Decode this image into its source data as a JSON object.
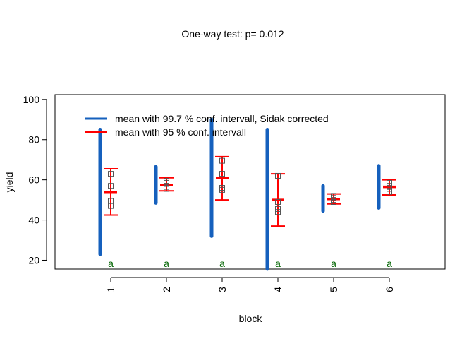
{
  "chart_data": {
    "type": "scatter",
    "title": "One-way test:  p= 0.012",
    "xlabel": "block",
    "ylabel": "yield",
    "categories": [
      "1",
      "2",
      "3",
      "4",
      "5",
      "6"
    ],
    "xlim": [
      0,
      7
    ],
    "ylim": [
      15.6,
      102.4
    ],
    "yticks": [
      20,
      40,
      60,
      80,
      100
    ],
    "legend": {
      "position": "top-left",
      "entries": [
        {
          "label": "mean with 99.7 % conf. intervall, Sidak corrected",
          "color": "#1560BD"
        },
        {
          "label": "mean with 95 % conf. intervall",
          "color": "#FF0000"
        }
      ]
    },
    "group_letters": [
      "a",
      "a",
      "a",
      "a",
      "a",
      "a"
    ],
    "colors": {
      "sidak": "#1560BD",
      "ci95": "#FF0000",
      "points": "#555555",
      "letters": "#006400"
    },
    "groups": [
      {
        "block": "1",
        "mean": 54.0,
        "ci95": [
          42.5,
          65.5
        ],
        "ci_sidak": [
          23.0,
          85.0
        ],
        "points": [
          63.0,
          57.0,
          49.5,
          47.0
        ]
      },
      {
        "block": "2",
        "mean": 57.5,
        "ci95": [
          54.5,
          61.0
        ],
        "ci_sidak": [
          48.5,
          66.5
        ],
        "points": [
          59.5,
          58.5,
          56.5,
          55.5
        ]
      },
      {
        "block": "3",
        "mean": 61.0,
        "ci95": [
          50.0,
          71.5
        ],
        "ci_sidak": [
          32.0,
          90.0
        ],
        "points": [
          69.5,
          63.0,
          56.0,
          55.0
        ]
      },
      {
        "block": "4",
        "mean": 50.0,
        "ci95": [
          37.0,
          63.0
        ],
        "ci_sidak": [
          15.6,
          85.0
        ],
        "points": [
          62.0,
          49.0,
          45.5,
          44.0
        ]
      },
      {
        "block": "5",
        "mean": 50.5,
        "ci95": [
          48.0,
          53.0
        ],
        "ci_sidak": [
          44.5,
          57.0
        ],
        "points": [
          52.0,
          51.0,
          50.0,
          49.0
        ]
      },
      {
        "block": "6",
        "mean": 56.5,
        "ci95": [
          52.5,
          60.0
        ],
        "ci_sidak": [
          46.0,
          67.0
        ],
        "points": [
          58.5,
          57.0,
          55.5,
          54.0
        ]
      }
    ]
  }
}
